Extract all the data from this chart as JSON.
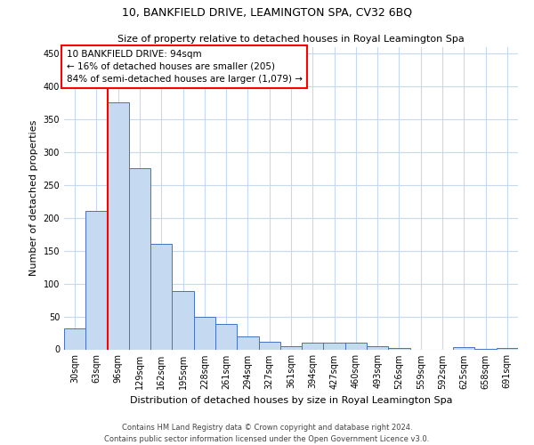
{
  "title": "10, BANKFIELD DRIVE, LEAMINGTON SPA, CV32 6BQ",
  "subtitle": "Size of property relative to detached houses in Royal Leamington Spa",
  "xlabel": "Distribution of detached houses by size in Royal Leamington Spa",
  "ylabel": "Number of detached properties",
  "footer_line1": "Contains HM Land Registry data © Crown copyright and database right 2024.",
  "footer_line2": "Contains public sector information licensed under the Open Government Licence v3.0.",
  "annotation_title": "10 BANKFIELD DRIVE: 94sqm",
  "annotation_line1": "← 16% of detached houses are smaller (205)",
  "annotation_line2": "84% of semi-detached houses are larger (1,079) →",
  "bar_categories": [
    "30sqm",
    "63sqm",
    "96sqm",
    "129sqm",
    "162sqm",
    "195sqm",
    "228sqm",
    "261sqm",
    "294sqm",
    "327sqm",
    "361sqm",
    "394sqm",
    "427sqm",
    "460sqm",
    "493sqm",
    "526sqm",
    "559sqm",
    "592sqm",
    "625sqm",
    "658sqm",
    "691sqm"
  ],
  "bar_values": [
    32,
    210,
    375,
    275,
    160,
    88,
    50,
    38,
    20,
    12,
    5,
    10,
    10,
    10,
    5,
    2,
    0,
    0,
    4,
    1,
    2
  ],
  "bar_color": "#c5d9f1",
  "bar_edge_color": "#4472c4",
  "vline_color": "#ff0000",
  "vline_x_index": 2,
  "annotation_box_color": "#ff0000",
  "ylim": [
    0,
    460
  ],
  "yticks": [
    0,
    50,
    100,
    150,
    200,
    250,
    300,
    350,
    400,
    450
  ],
  "grid_color": "#c5d9f1",
  "bg_color": "#ffffff",
  "title_fontsize": 9,
  "subtitle_fontsize": 8,
  "ylabel_fontsize": 8,
  "xlabel_fontsize": 8,
  "tick_fontsize": 7,
  "footer_fontsize": 6,
  "annotation_fontsize": 7.5
}
